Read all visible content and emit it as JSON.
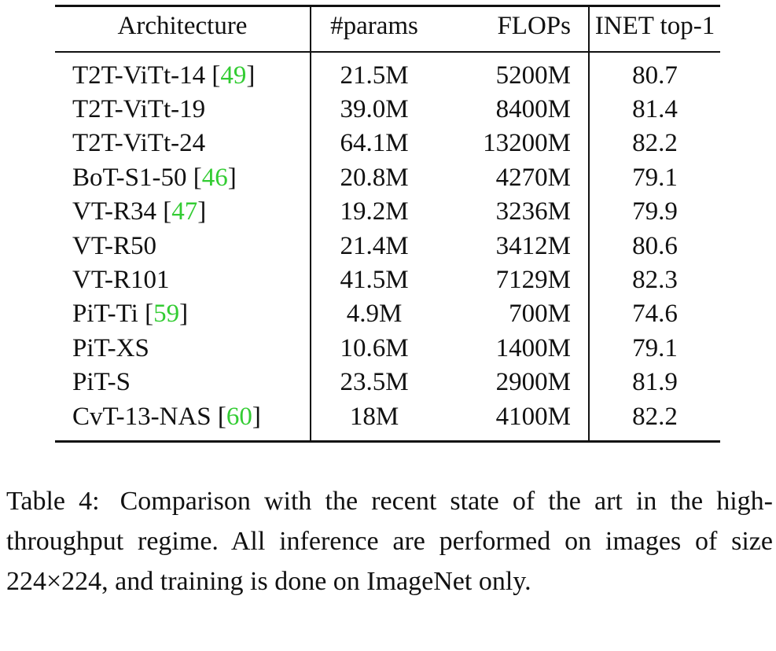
{
  "table": {
    "headers": {
      "architecture": "Architecture",
      "params": "#params",
      "flops": "FLOPs",
      "top1": "INET top-1"
    },
    "rows": [
      {
        "name": "T2T-ViTt-14",
        "cite": "49",
        "params": "21.5M",
        "flops": "5200M",
        "top1": "80.7"
      },
      {
        "name": "T2T-ViTt-19",
        "cite": "",
        "params": "39.0M",
        "flops": "8400M",
        "top1": "81.4"
      },
      {
        "name": "T2T-ViTt-24",
        "cite": "",
        "params": "64.1M",
        "flops": "13200M",
        "top1": "82.2"
      },
      {
        "name": "BoT-S1-50",
        "cite": "46",
        "params": "20.8M",
        "flops": "4270M",
        "top1": "79.1"
      },
      {
        "name": "VT-R34",
        "cite": "47",
        "params": "19.2M",
        "flops": "3236M",
        "top1": "79.9"
      },
      {
        "name": "VT-R50",
        "cite": "",
        "params": "21.4M",
        "flops": "3412M",
        "top1": "80.6"
      },
      {
        "name": "VT-R101",
        "cite": "",
        "params": "41.5M",
        "flops": "7129M",
        "top1": "82.3"
      },
      {
        "name": "PiT-Ti",
        "cite": "59",
        "params": "4.9M",
        "flops": "700M",
        "top1": "74.6"
      },
      {
        "name": "PiT-XS",
        "cite": "",
        "params": "10.6M",
        "flops": "1400M",
        "top1": "79.1"
      },
      {
        "name": "PiT-S",
        "cite": "",
        "params": "23.5M",
        "flops": "2900M",
        "top1": "81.9"
      },
      {
        "name": "CvT-13-NAS",
        "cite": "60",
        "params": "18M",
        "flops": "4100M",
        "top1": "82.2"
      }
    ]
  },
  "caption": {
    "label": "Table 4:",
    "text": "Comparison with the recent state of the art in the high-throughput regime. All inference are performed on images of size 224×224, and training is done on ImageNet only."
  },
  "colors": {
    "citation": "#33cc33",
    "text": "#111111"
  }
}
